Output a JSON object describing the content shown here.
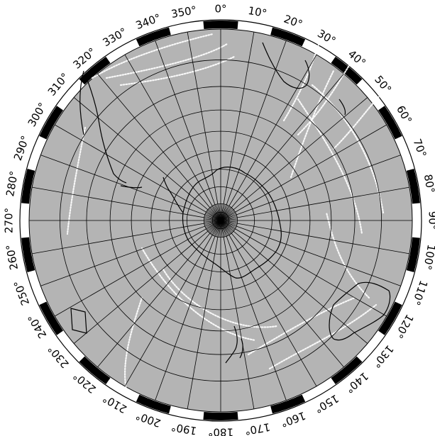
{
  "map": {
    "projection": "south-polar-stereographic",
    "colors": {
      "ocean": "#b4b4b4",
      "frame_dark": "#000000",
      "frame_light": "#ffffff",
      "coast": "#000000",
      "tracks": "#ffffff",
      "graticule": "#000000"
    },
    "longitude_labels": [
      "0°",
      "10°",
      "20°",
      "30°",
      "40°",
      "50°",
      "60°",
      "70°",
      "80°",
      "90°",
      "100°",
      "110°",
      "120°",
      "130°",
      "140°",
      "150°",
      "160°",
      "170°",
      "180°",
      "190°",
      "200°",
      "210°",
      "220°",
      "230°",
      "240°",
      "250°",
      "260°",
      "270°",
      "280°",
      "290°",
      "300°",
      "310°",
      "320°",
      "330°",
      "340°",
      "350°"
    ],
    "meridian_step_deg": 10,
    "latitude_circles_deg": [
      -80,
      -70,
      -60,
      -50,
      -40,
      -30,
      -20,
      -10
    ],
    "boundary_latitude_deg": 0
  }
}
